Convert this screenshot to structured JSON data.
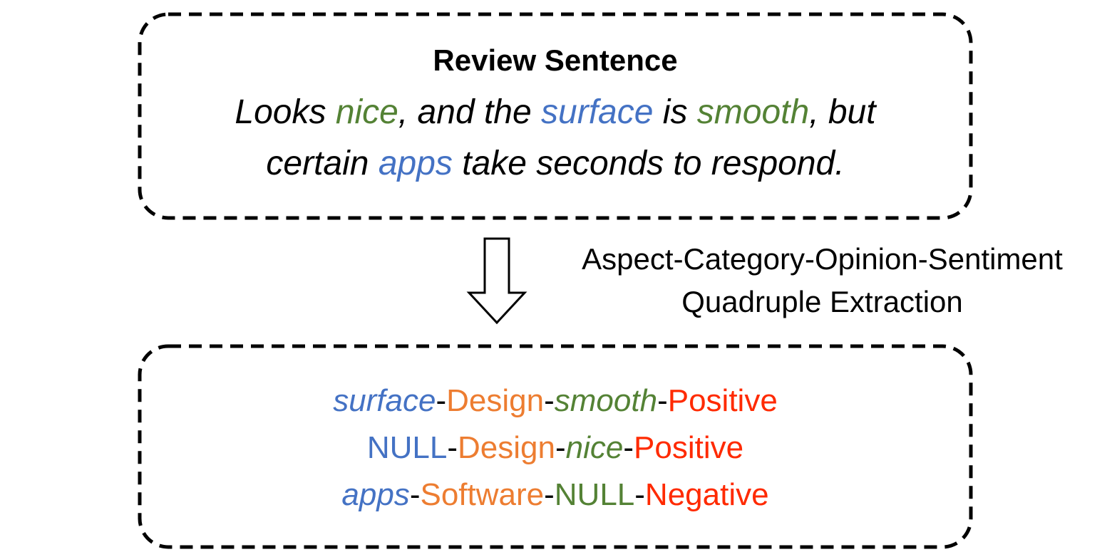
{
  "colors": {
    "aspect": "#4472C4",
    "category": "#ED7D31",
    "opinion": "#548235",
    "sentiment": "#FF2A00",
    "plain": "#000000"
  },
  "review_box": {
    "title": "Review Sentence",
    "sentence_line1": [
      {
        "text": "Looks ",
        "role": "plain"
      },
      {
        "text": "nice",
        "role": "opinion"
      },
      {
        "text": ", and the ",
        "role": "plain"
      },
      {
        "text": "surface",
        "role": "aspect"
      },
      {
        "text": " is ",
        "role": "plain"
      },
      {
        "text": "smooth",
        "role": "opinion"
      },
      {
        "text": ", but",
        "role": "plain"
      }
    ],
    "sentence_line2": [
      {
        "text": "certain ",
        "role": "plain"
      },
      {
        "text": "apps",
        "role": "aspect"
      },
      {
        "text": " take seconds to respond.",
        "role": "plain"
      }
    ]
  },
  "task": {
    "line1": "Aspect-Category-Opinion-Sentiment",
    "line2": "Quadruple Extraction"
  },
  "output_box": {
    "quadruples": [
      [
        {
          "text": "surface",
          "role": "aspect",
          "italic": true
        },
        {
          "text": "-",
          "role": "plain",
          "italic": false
        },
        {
          "text": "Design",
          "role": "category",
          "italic": false
        },
        {
          "text": "-",
          "role": "plain",
          "italic": false
        },
        {
          "text": "smooth",
          "role": "opinion",
          "italic": true
        },
        {
          "text": "-",
          "role": "plain",
          "italic": false
        },
        {
          "text": "Positive",
          "role": "sentiment",
          "italic": false
        }
      ],
      [
        {
          "text": "NULL",
          "role": "aspect",
          "italic": false
        },
        {
          "text": "-",
          "role": "plain",
          "italic": false
        },
        {
          "text": "Design",
          "role": "category",
          "italic": false
        },
        {
          "text": "-",
          "role": "plain",
          "italic": false
        },
        {
          "text": "nice",
          "role": "opinion",
          "italic": true
        },
        {
          "text": "-",
          "role": "plain",
          "italic": false
        },
        {
          "text": "Positive",
          "role": "sentiment",
          "italic": false
        }
      ],
      [
        {
          "text": "apps",
          "role": "aspect",
          "italic": true
        },
        {
          "text": "-",
          "role": "plain",
          "italic": false
        },
        {
          "text": "Software",
          "role": "category",
          "italic": false
        },
        {
          "text": "-",
          "role": "plain",
          "italic": false
        },
        {
          "text": "NULL",
          "role": "opinion",
          "italic": false
        },
        {
          "text": "-",
          "role": "plain",
          "italic": false
        },
        {
          "text": "Negative",
          "role": "sentiment",
          "italic": false
        }
      ]
    ]
  }
}
